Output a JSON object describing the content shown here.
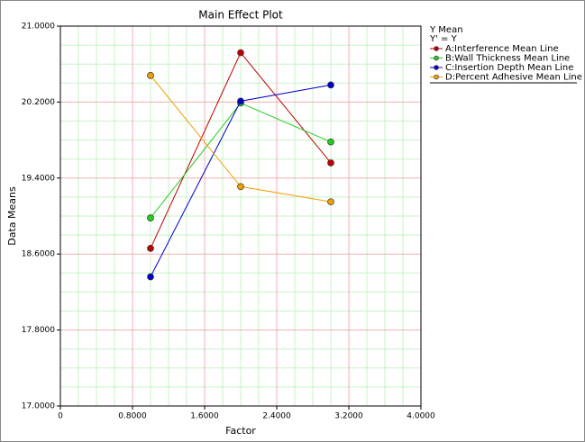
{
  "chart_data": {
    "type": "line",
    "title": "Main Effect Plot",
    "x_label": "Factor",
    "y_label": "Data Means",
    "legend_title": "Y Mean",
    "legend_subtitle": "Y' = Y",
    "legend_position": "right",
    "x": [
      1,
      2,
      3
    ],
    "series": [
      {
        "name": "A:Interference Mean Line",
        "color": "#c00000",
        "values": [
          18.66,
          20.72,
          19.56
        ]
      },
      {
        "name": "B:Wall Thickness Mean Line",
        "color": "#22cc22",
        "values": [
          18.98,
          20.19,
          19.78
        ]
      },
      {
        "name": "C:Insertion Depth Mean Line",
        "color": "#0000cc",
        "values": [
          18.36,
          20.21,
          20.38
        ]
      },
      {
        "name": "D:Percent Adhesive Mean Line",
        "color": "#f0a000",
        "values": [
          20.48,
          19.31,
          19.15
        ]
      }
    ],
    "xlim": [
      0,
      4
    ],
    "xticks": [
      0,
      {
        "value": 0.8,
        "label": "0.8000"
      },
      {
        "value": 1.6,
        "label": "1.6000"
      },
      {
        "value": 2.4,
        "label": "2.4000"
      },
      {
        "value": 3.2,
        "label": "3.2000"
      },
      {
        "value": 4,
        "label": "4.0000"
      }
    ],
    "ylim": [
      17,
      21
    ],
    "yticks": [
      {
        "value": 17,
        "label": "17.0000"
      },
      {
        "value": 17.8,
        "label": "17.8000"
      },
      {
        "value": 18.6,
        "label": "18.6000"
      },
      {
        "value": 19.4,
        "label": "19.4000"
      },
      {
        "value": 20.2,
        "label": "20.2000"
      },
      {
        "value": 21,
        "label": "21.0000"
      }
    ],
    "grid": true
  }
}
